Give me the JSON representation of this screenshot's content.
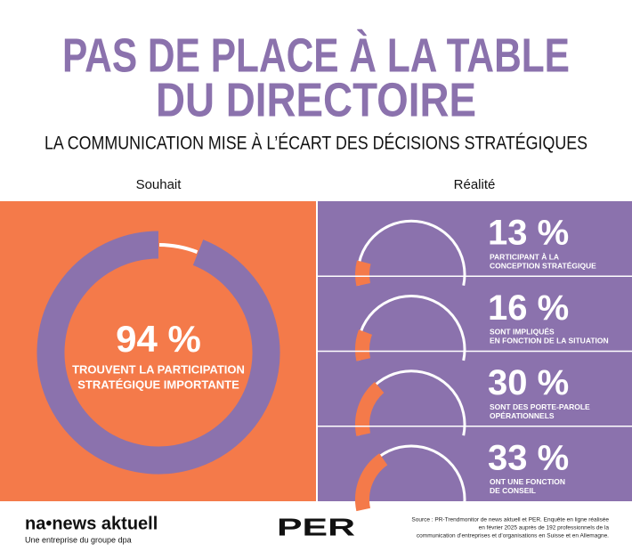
{
  "title": [
    "PAS DE PLACE À LA TABLE",
    "DU DIRECTOIRE"
  ],
  "subtitle": "LA COMMUNICATION MISE À L’ÉCART DES DÉCISIONS STRATÉGIQUES",
  "wish": {
    "heading": "Souhait",
    "value": 94,
    "value_label": "94 %",
    "caption": [
      "TROUVENT LA PARTICIPATION",
      "STRATÉGIQUE IMPORTANTE"
    ]
  },
  "reality": {
    "heading": "Réalité",
    "items": [
      {
        "value": 13,
        "value_label": "13 %",
        "caption": [
          "PARTICIPANT À LA",
          "CONCEPTION STRATÉGIQUE"
        ]
      },
      {
        "value": 16,
        "value_label": "16 %",
        "caption": [
          "SONT IMPLIQUÉS",
          "EN FONCTION DE LA SITUATION"
        ]
      },
      {
        "value": 30,
        "value_label": "30 %",
        "caption": [
          "SONT DES PORTE-PAROLE",
          "OPÉRATIONNELS"
        ]
      },
      {
        "value": 33,
        "value_label": "33 %",
        "caption": [
          "ONT UNE FONCTION",
          "DE CONSEIL"
        ]
      }
    ]
  },
  "colors": {
    "orange": "#f47a4a",
    "purple": "#8b72ad"
  },
  "footer": {
    "brand": "na•news aktuell",
    "tagline": "Une entreprise du groupe dpa",
    "partner": "PER",
    "source": [
      "Source : PR-Trendmonitor de news aktuell et PER. Enquête en ligne réalisée",
      "en février 2025 auprès de 192 professionnels de la",
      "communication d’entreprises et d’organisations en Suisse et en Allemagne."
    ]
  }
}
